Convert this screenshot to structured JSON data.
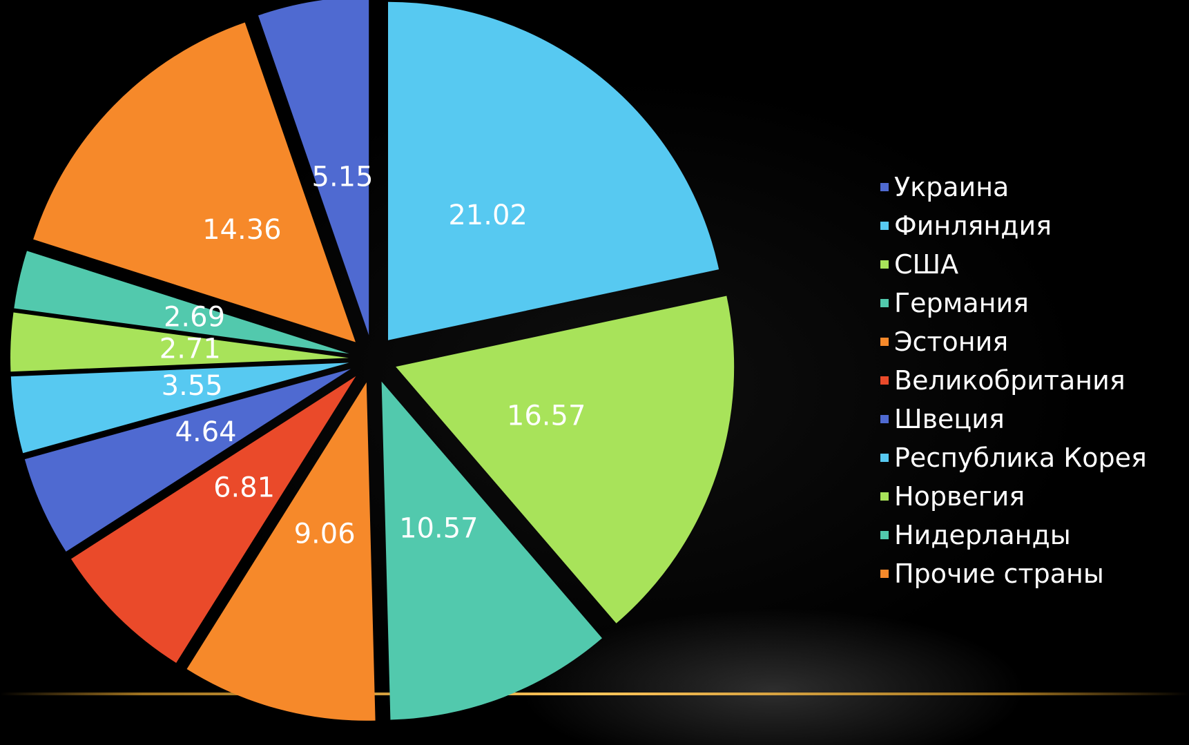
{
  "chart_data": {
    "type": "pie",
    "exploded": true,
    "start_angle_deg": 0,
    "direction": "clockwise",
    "legend_position": "right",
    "categories": [
      "Украина",
      "Финляндия",
      "США",
      "Германия",
      "Эстония",
      "Великобритания",
      "Швеция",
      "Республика Корея",
      "Норвегия",
      "Нидерланды",
      "Прочие страны"
    ],
    "colors": [
      "#4f6ad1",
      "#57c9f1",
      "#a8e35a",
      "#52c9ad",
      "#f6892a",
      "#ea4a2a",
      "#4f6ad1",
      "#57c9f1",
      "#a8e35a",
      "#52c9ad",
      "#f6892a"
    ],
    "slices": [
      {
        "name": "Финляндия",
        "value": 21.02,
        "label": "21.02",
        "color": "#57c9f1"
      },
      {
        "name": "Норвегия",
        "value": 16.57,
        "label": "16.57",
        "color": "#a8e35a"
      },
      {
        "name": "Нидерланды",
        "value": 10.57,
        "label": "10.57",
        "color": "#52c9ad"
      },
      {
        "name": "Эстония",
        "value": 9.06,
        "label": "9.06",
        "color": "#f6892a"
      },
      {
        "name": "Великобритания",
        "value": 6.81,
        "label": "6.81",
        "color": "#ea4a2a"
      },
      {
        "name": "Швеция",
        "value": 4.64,
        "label": "4.64",
        "color": "#4f6ad1"
      },
      {
        "name": "Республика Корея",
        "value": 3.55,
        "label": "3.55",
        "color": "#57c9f1"
      },
      {
        "name": "США",
        "value": 2.71,
        "label": "2.71",
        "color": "#a8e35a"
      },
      {
        "name": "Германия",
        "value": 2.69,
        "label": "2.69",
        "color": "#52c9ad"
      },
      {
        "name": "Прочие страны",
        "value": 14.36,
        "label": "14.36",
        "color": "#f6892a"
      },
      {
        "name": "Украина",
        "value": 5.15,
        "label": "5.15",
        "color": "#4f6ad1"
      }
    ]
  }
}
